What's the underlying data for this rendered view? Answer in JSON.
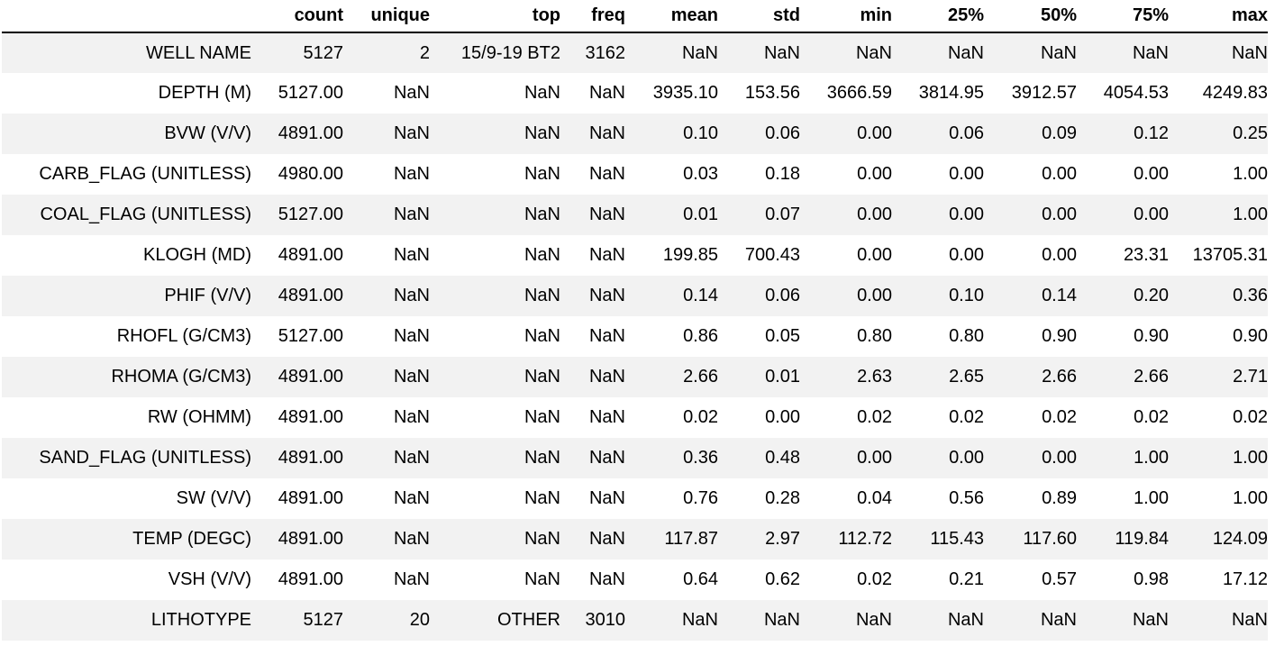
{
  "table": {
    "columns": [
      "count",
      "unique",
      "top",
      "freq",
      "mean",
      "std",
      "min",
      "25%",
      "50%",
      "75%",
      "max"
    ],
    "rows": [
      {
        "index": "WELL NAME",
        "cells": [
          "5127",
          "2",
          "15/9-19 BT2",
          "3162",
          "NaN",
          "NaN",
          "NaN",
          "NaN",
          "NaN",
          "NaN",
          "NaN"
        ]
      },
      {
        "index": "DEPTH (M)",
        "cells": [
          "5127.00",
          "NaN",
          "NaN",
          "NaN",
          "3935.10",
          "153.56",
          "3666.59",
          "3814.95",
          "3912.57",
          "4054.53",
          "4249.83"
        ]
      },
      {
        "index": "BVW (V/V)",
        "cells": [
          "4891.00",
          "NaN",
          "NaN",
          "NaN",
          "0.10",
          "0.06",
          "0.00",
          "0.06",
          "0.09",
          "0.12",
          "0.25"
        ]
      },
      {
        "index": "CARB_FLAG (UNITLESS)",
        "cells": [
          "4980.00",
          "NaN",
          "NaN",
          "NaN",
          "0.03",
          "0.18",
          "0.00",
          "0.00",
          "0.00",
          "0.00",
          "1.00"
        ]
      },
      {
        "index": "COAL_FLAG (UNITLESS)",
        "cells": [
          "5127.00",
          "NaN",
          "NaN",
          "NaN",
          "0.01",
          "0.07",
          "0.00",
          "0.00",
          "0.00",
          "0.00",
          "1.00"
        ]
      },
      {
        "index": "KLOGH (MD)",
        "cells": [
          "4891.00",
          "NaN",
          "NaN",
          "NaN",
          "199.85",
          "700.43",
          "0.00",
          "0.00",
          "0.00",
          "23.31",
          "13705.31"
        ]
      },
      {
        "index": "PHIF (V/V)",
        "cells": [
          "4891.00",
          "NaN",
          "NaN",
          "NaN",
          "0.14",
          "0.06",
          "0.00",
          "0.10",
          "0.14",
          "0.20",
          "0.36"
        ]
      },
      {
        "index": "RHOFL (G/CM3)",
        "cells": [
          "5127.00",
          "NaN",
          "NaN",
          "NaN",
          "0.86",
          "0.05",
          "0.80",
          "0.80",
          "0.90",
          "0.90",
          "0.90"
        ]
      },
      {
        "index": "RHOMA (G/CM3)",
        "cells": [
          "4891.00",
          "NaN",
          "NaN",
          "NaN",
          "2.66",
          "0.01",
          "2.63",
          "2.65",
          "2.66",
          "2.66",
          "2.71"
        ]
      },
      {
        "index": "RW (OHMM)",
        "cells": [
          "4891.00",
          "NaN",
          "NaN",
          "NaN",
          "0.02",
          "0.00",
          "0.02",
          "0.02",
          "0.02",
          "0.02",
          "0.02"
        ]
      },
      {
        "index": "SAND_FLAG (UNITLESS)",
        "cells": [
          "4891.00",
          "NaN",
          "NaN",
          "NaN",
          "0.36",
          "0.48",
          "0.00",
          "0.00",
          "0.00",
          "1.00",
          "1.00"
        ]
      },
      {
        "index": "SW (V/V)",
        "cells": [
          "4891.00",
          "NaN",
          "NaN",
          "NaN",
          "0.76",
          "0.28",
          "0.04",
          "0.56",
          "0.89",
          "1.00",
          "1.00"
        ]
      },
      {
        "index": "TEMP (DEGC)",
        "cells": [
          "4891.00",
          "NaN",
          "NaN",
          "NaN",
          "117.87",
          "2.97",
          "112.72",
          "115.43",
          "117.60",
          "119.84",
          "124.09"
        ]
      },
      {
        "index": "VSH (V/V)",
        "cells": [
          "4891.00",
          "NaN",
          "NaN",
          "NaN",
          "0.64",
          "0.62",
          "0.02",
          "0.21",
          "0.57",
          "0.98",
          "17.12"
        ]
      },
      {
        "index": "LITHOTYPE",
        "cells": [
          "5127",
          "20",
          "OTHER",
          "3010",
          "NaN",
          "NaN",
          "NaN",
          "NaN",
          "NaN",
          "NaN",
          "NaN"
        ]
      }
    ]
  },
  "colors": {
    "stripe": "#f2f2f2",
    "text": "#000000",
    "header_rule": "#000000"
  }
}
